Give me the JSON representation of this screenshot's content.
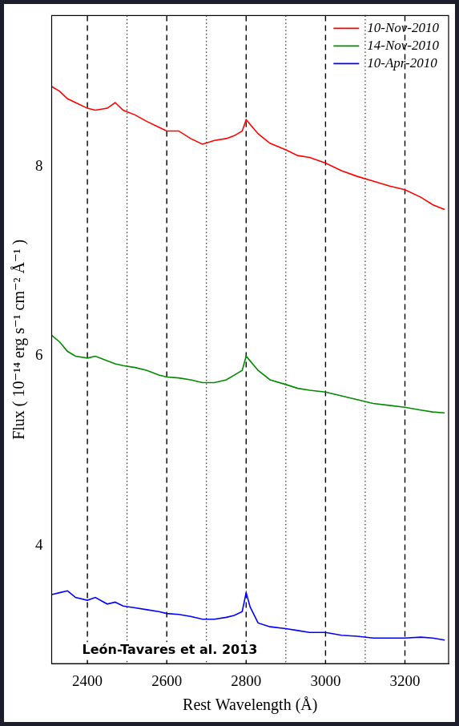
{
  "chart_data": {
    "type": "line",
    "x_label": "Rest Wavelength (Å)",
    "y_label": "Flux ( 10⁻¹⁴ erg s⁻¹ cm⁻² Å⁻¹ )",
    "annotation": "León-Tavares et al. 2013",
    "x": [
      2310,
      2330,
      2350,
      2370,
      2400,
      2420,
      2450,
      2470,
      2490,
      2520,
      2550,
      2580,
      2600,
      2630,
      2660,
      2690,
      2720,
      2750,
      2770,
      2790,
      2800,
      2810,
      2830,
      2860,
      2900,
      2930,
      2960,
      3000,
      3040,
      3080,
      3120,
      3160,
      3200,
      3240,
      3270,
      3300
    ],
    "series": [
      {
        "name": "10-Nov-2010",
        "color": "#ff0000",
        "values": [
          8.85,
          8.8,
          8.72,
          8.68,
          8.62,
          8.6,
          8.62,
          8.68,
          8.6,
          8.55,
          8.48,
          8.42,
          8.38,
          8.38,
          8.3,
          8.24,
          8.28,
          8.3,
          8.33,
          8.38,
          8.5,
          8.45,
          8.35,
          8.25,
          8.18,
          8.12,
          8.1,
          8.04,
          7.96,
          7.9,
          7.85,
          7.8,
          7.76,
          7.68,
          7.6,
          7.55
        ]
      },
      {
        "name": "14-Nov-2010",
        "color": "#008b00",
        "values": [
          6.22,
          6.15,
          6.05,
          6.0,
          5.98,
          6.0,
          5.95,
          5.92,
          5.9,
          5.88,
          5.85,
          5.8,
          5.78,
          5.77,
          5.75,
          5.72,
          5.72,
          5.75,
          5.8,
          5.85,
          6.0,
          5.95,
          5.85,
          5.75,
          5.7,
          5.66,
          5.64,
          5.62,
          5.58,
          5.54,
          5.5,
          5.48,
          5.46,
          5.43,
          5.41,
          5.4
        ]
      },
      {
        "name": "10-Apr-2010",
        "color": "#0000ff",
        "values": [
          3.48,
          3.5,
          3.52,
          3.45,
          3.42,
          3.45,
          3.38,
          3.4,
          3.36,
          3.34,
          3.32,
          3.3,
          3.28,
          3.27,
          3.25,
          3.22,
          3.22,
          3.24,
          3.26,
          3.3,
          3.5,
          3.35,
          3.18,
          3.14,
          3.12,
          3.1,
          3.08,
          3.08,
          3.05,
          3.04,
          3.02,
          3.02,
          3.02,
          3.03,
          3.02,
          3.0
        ]
      }
    ],
    "reference_lines": [
      2400,
      2500,
      2600,
      2700,
      2800,
      2900,
      3000,
      3100,
      3200
    ],
    "xlim": [
      2310,
      3310
    ],
    "xticks": [
      2400,
      2600,
      2800,
      3000,
      3200
    ],
    "ylim": [
      2.75,
      9.6
    ],
    "yticks": [
      4,
      6,
      8
    ],
    "grid": false,
    "legend": "top-right"
  }
}
